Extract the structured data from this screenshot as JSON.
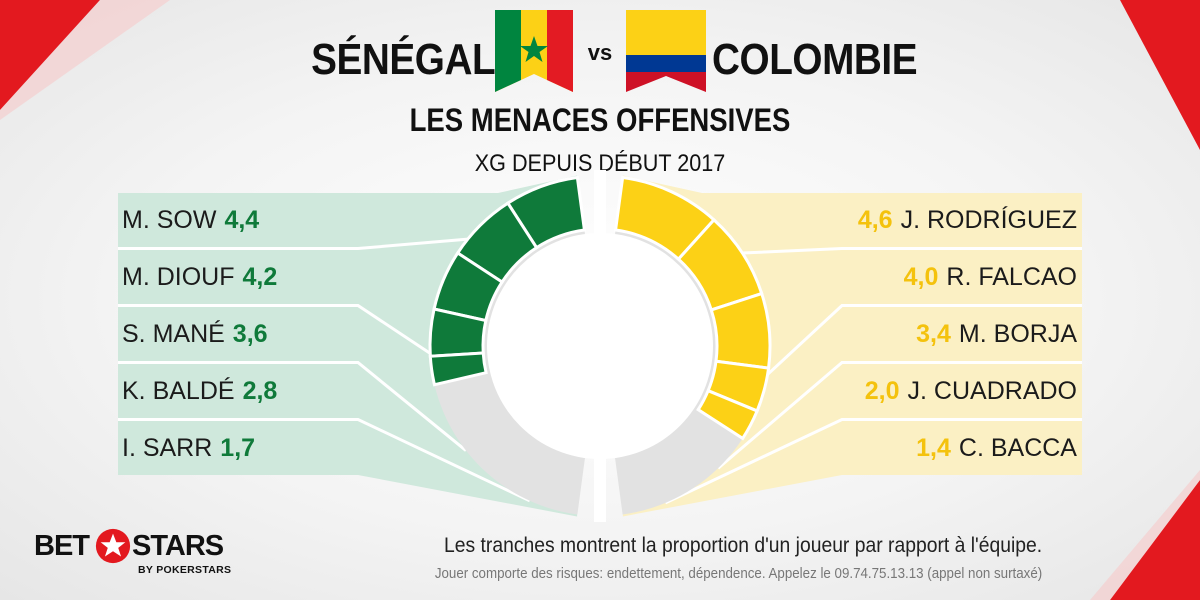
{
  "header": {
    "team_left": "SÉNÉGAL",
    "vs": "vs",
    "team_right": "COLOMBIE",
    "subtitle": "LES MENACES OFFENSIVES",
    "metric": "XG DEPUIS DÉBUT 2017"
  },
  "colors": {
    "senegal_green": "#0f7a3a",
    "senegal_panel": "#cfe8dc",
    "colombia_yellow": "#fcd116",
    "colombia_panel": "#fbf0c4",
    "rest_grey": "#e2e2e2",
    "brand_red": "#e3191f"
  },
  "chart_data": {
    "type": "pie",
    "title": "LES MENACES OFFENSIVES",
    "subtitle": "XG DEPUIS DÉBUT 2017",
    "series": [
      {
        "name": "SÉNÉGAL",
        "categories": [
          "M. SOW",
          "M. DIOUF",
          "S. MANÉ",
          "K. BALDÉ",
          "I. SARR"
        ],
        "values_display": [
          "4,4",
          "4,2",
          "3,6",
          "2,8",
          "1,7"
        ],
        "values": [
          4.4,
          4.2,
          3.6,
          2.8,
          1.7
        ]
      },
      {
        "name": "COLOMBIE",
        "categories": [
          "J. RODRÍGUEZ",
          "R. FALCAO",
          "M. BORJA",
          "J. CUADRADO",
          "C. BACCA"
        ],
        "values_display": [
          "4,6",
          "4,0",
          "3,4",
          "2,0",
          "1,4"
        ],
        "values": [
          4.6,
          4.0,
          3.4,
          2.0,
          1.4
        ]
      }
    ]
  },
  "footer": {
    "note": "Les tranches montrent la proportion d'un joueur par rapport à l'équipe.",
    "disclaimer": "Jouer comporte des risques: endettement, dépendence. Appelez le 09.74.75.13.13 (appel non surtaxé)"
  },
  "logo": {
    "word1": "BET",
    "word2": "STARS",
    "tagline": "BY POKERSTARS",
    "icon": "star-icon"
  }
}
